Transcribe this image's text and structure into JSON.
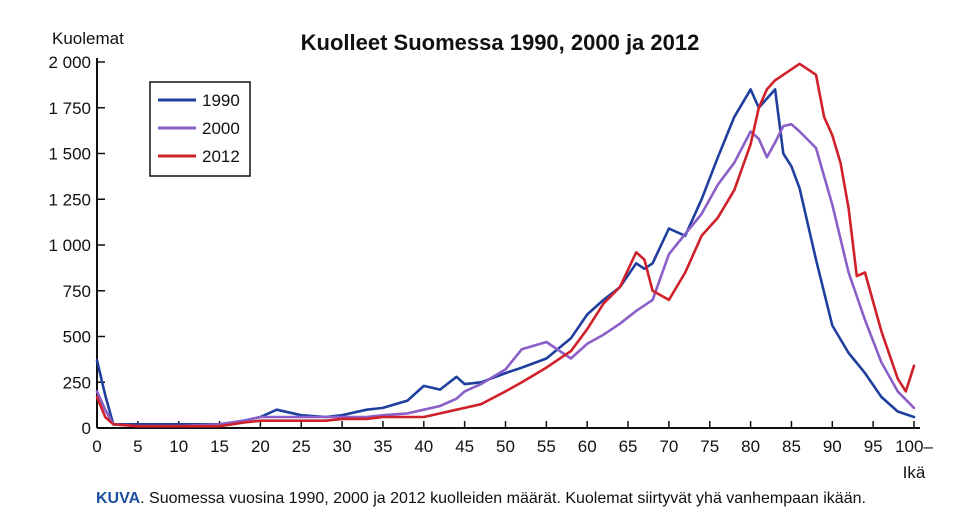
{
  "chart_data": {
    "type": "line",
    "title": "Kuolleet Suomessa 1990, 2000 ja 2012",
    "ylabel": "Kuolemat",
    "xlabel": "Ikä",
    "xlim": [
      0,
      100
    ],
    "ylim": [
      0,
      2000
    ],
    "x_ticks": [
      {
        "value": 0,
        "label": "0"
      },
      {
        "value": 5,
        "label": "5"
      },
      {
        "value": 10,
        "label": "10"
      },
      {
        "value": 15,
        "label": "15"
      },
      {
        "value": 20,
        "label": "20"
      },
      {
        "value": 25,
        "label": "25"
      },
      {
        "value": 30,
        "label": "30"
      },
      {
        "value": 35,
        "label": "35"
      },
      {
        "value": 40,
        "label": "40"
      },
      {
        "value": 45,
        "label": "45"
      },
      {
        "value": 50,
        "label": "50"
      },
      {
        "value": 55,
        "label": "55"
      },
      {
        "value": 60,
        "label": "60"
      },
      {
        "value": 65,
        "label": "65"
      },
      {
        "value": 70,
        "label": "70"
      },
      {
        "value": 75,
        "label": "75"
      },
      {
        "value": 80,
        "label": "80"
      },
      {
        "value": 85,
        "label": "85"
      },
      {
        "value": 90,
        "label": "90"
      },
      {
        "value": 95,
        "label": "95"
      },
      {
        "value": 100,
        "label": "100–"
      }
    ],
    "y_ticks": [
      {
        "value": 0,
        "label": "0"
      },
      {
        "value": 250,
        "label": "250"
      },
      {
        "value": 500,
        "label": "500"
      },
      {
        "value": 750,
        "label": "750"
      },
      {
        "value": 1000,
        "label": "1 000"
      },
      {
        "value": 1250,
        "label": "1 250"
      },
      {
        "value": 1500,
        "label": "1 500"
      },
      {
        "value": 1750,
        "label": "1 750"
      },
      {
        "value": 2000,
        "label": "2 000"
      }
    ],
    "grid": false,
    "legend": "top-left",
    "series": [
      {
        "name": "1990",
        "color": "#1f3f9e",
        "x": [
          0,
          1,
          2,
          5,
          10,
          15,
          18,
          20,
          22,
          25,
          28,
          30,
          33,
          35,
          38,
          40,
          42,
          44,
          45,
          47,
          50,
          52,
          55,
          58,
          60,
          62,
          64,
          66,
          67,
          68,
          70,
          72,
          74,
          76,
          78,
          80,
          81,
          82,
          83,
          84,
          85,
          86,
          88,
          90,
          92,
          94,
          96,
          98,
          100
        ],
        "y": [
          370,
          180,
          20,
          20,
          20,
          20,
          40,
          60,
          100,
          70,
          60,
          70,
          100,
          110,
          150,
          230,
          210,
          280,
          240,
          250,
          300,
          330,
          380,
          490,
          620,
          700,
          770,
          900,
          870,
          900,
          1090,
          1050,
          1250,
          1480,
          1700,
          1850,
          1750,
          1800,
          1850,
          1500,
          1430,
          1310,
          920,
          560,
          410,
          300,
          170,
          90,
          60
        ]
      },
      {
        "name": "2000",
        "color": "#8a5fc8",
        "x": [
          0,
          1,
          2,
          5,
          10,
          15,
          18,
          20,
          22,
          25,
          28,
          30,
          33,
          35,
          38,
          40,
          42,
          44,
          45,
          47,
          50,
          52,
          55,
          58,
          60,
          62,
          64,
          66,
          68,
          70,
          72,
          74,
          76,
          78,
          80,
          81,
          82,
          83,
          84,
          85,
          86,
          88,
          90,
          92,
          94,
          96,
          98,
          100
        ],
        "y": [
          200,
          100,
          20,
          10,
          10,
          20,
          40,
          60,
          60,
          60,
          60,
          60,
          60,
          70,
          80,
          100,
          120,
          160,
          200,
          240,
          320,
          430,
          470,
          380,
          460,
          510,
          570,
          640,
          700,
          950,
          1060,
          1170,
          1330,
          1450,
          1620,
          1580,
          1480,
          1560,
          1650,
          1660,
          1620,
          1530,
          1220,
          850,
          590,
          360,
          200,
          110
        ]
      },
      {
        "name": "2012",
        "color": "#d0202a",
        "x": [
          0,
          1,
          2,
          5,
          10,
          15,
          18,
          20,
          22,
          25,
          28,
          30,
          33,
          35,
          38,
          40,
          42,
          44,
          45,
          47,
          50,
          52,
          55,
          58,
          60,
          62,
          64,
          66,
          67,
          68,
          70,
          72,
          74,
          76,
          78,
          80,
          81,
          82,
          83,
          84,
          85,
          86,
          87,
          88,
          89,
          90,
          91,
          92,
          93,
          94,
          96,
          98,
          99,
          100
        ],
        "y": [
          170,
          60,
          20,
          10,
          10,
          10,
          30,
          40,
          40,
          40,
          40,
          50,
          50,
          60,
          60,
          60,
          80,
          100,
          110,
          130,
          200,
          250,
          330,
          420,
          540,
          680,
          770,
          960,
          920,
          750,
          700,
          850,
          1050,
          1150,
          1300,
          1550,
          1750,
          1850,
          1900,
          1930,
          1960,
          1990,
          1960,
          1930,
          1700,
          1600,
          1450,
          1200,
          830,
          850,
          530,
          270,
          200,
          340
        ]
      }
    ]
  },
  "caption": {
    "label": "KUVA",
    "text": ". Suomessa vuosina 1990, 2000 ja 2012 kuolleiden määrät. Kuolemat siirtyvät yhä vanhempaan ikään."
  }
}
